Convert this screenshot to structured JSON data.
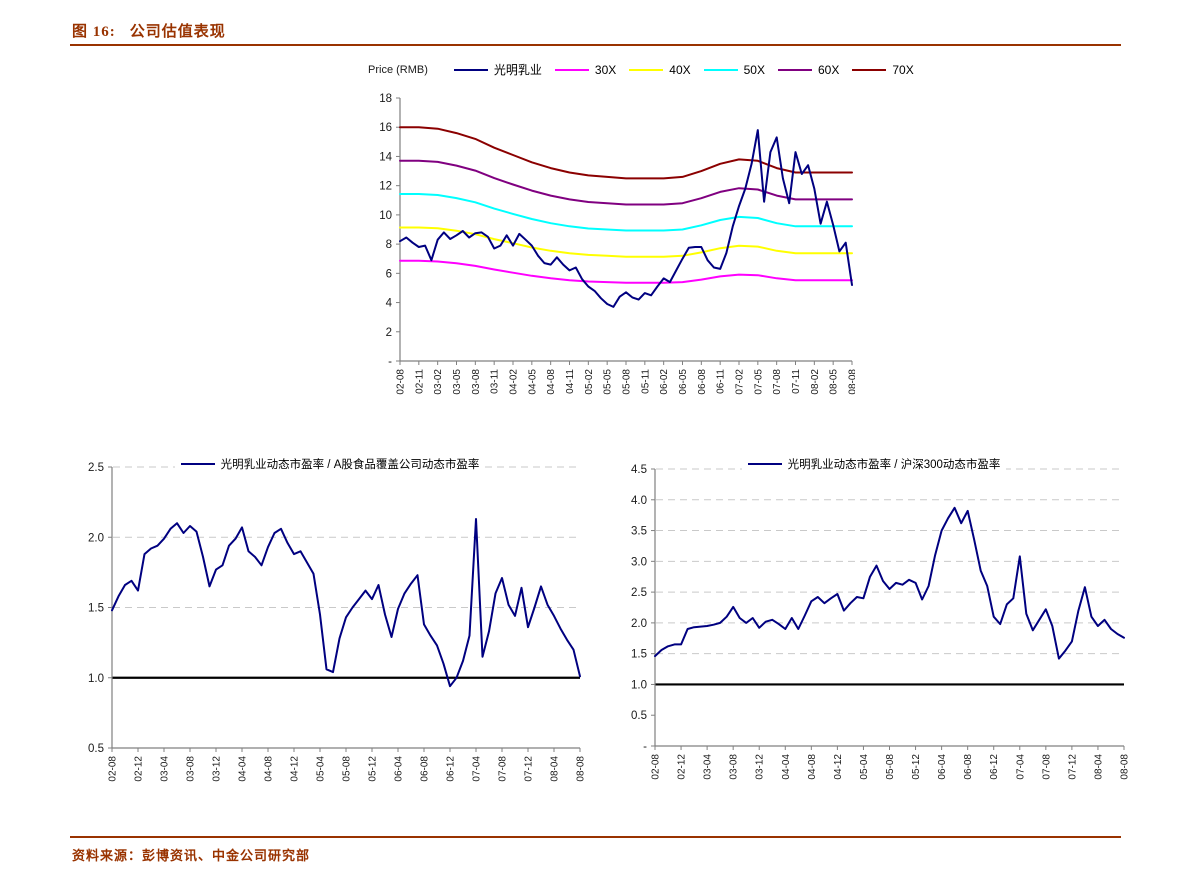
{
  "page": {
    "figure_label": "图 16:",
    "figure_title": "公司估值表现",
    "source_label": "资料来源：",
    "source_text": "彭博资讯、中金公司研究部",
    "accent_color": "#993300"
  },
  "chart_data": [
    {
      "id": "valuation-bands",
      "type": "line",
      "title": "",
      "axis_label": "Price (RMB)",
      "xlabel": "",
      "ylabel": "Price (RMB)",
      "ylim": [
        0,
        18
      ],
      "yticks": [
        0,
        2,
        4,
        6,
        8,
        10,
        12,
        14,
        16,
        18
      ],
      "ytick_labels": [
        "-",
        "2",
        "4",
        "6",
        "8",
        "10",
        "12",
        "14",
        "16",
        "18"
      ],
      "x_tick_labels": [
        "02-08",
        "02-11",
        "03-02",
        "03-05",
        "03-08",
        "03-11",
        "04-02",
        "04-05",
        "04-08",
        "04-11",
        "05-02",
        "05-05",
        "05-08",
        "05-11",
        "06-02",
        "06-05",
        "06-08",
        "06-11",
        "07-02",
        "07-05",
        "07-08",
        "07-11",
        "08-02",
        "08-05",
        "08-08"
      ],
      "grid": false,
      "legend_position": "top",
      "series": [
        {
          "sid": "pe-30x",
          "name": "30X",
          "color": "#FF00FF",
          "values": [
            6.86,
            6.86,
            6.81,
            6.69,
            6.51,
            6.26,
            6.04,
            5.83,
            5.66,
            5.53,
            5.44,
            5.4,
            5.36,
            5.36,
            5.36,
            5.4,
            5.57,
            5.79,
            5.91,
            5.87,
            5.66,
            5.53,
            5.53,
            5.53,
            5.53
          ]
        },
        {
          "sid": "pe-40x",
          "name": "40X",
          "color": "#FFFF00",
          "values": [
            9.14,
            9.14,
            9.08,
            8.92,
            8.68,
            8.34,
            8.06,
            7.77,
            7.54,
            7.37,
            7.26,
            7.2,
            7.14,
            7.14,
            7.14,
            7.2,
            7.43,
            7.72,
            7.89,
            7.83,
            7.54,
            7.37,
            7.37,
            7.37,
            7.37
          ]
        },
        {
          "sid": "pe-50x",
          "name": "50X",
          "color": "#00FFFF",
          "values": [
            11.43,
            11.43,
            11.36,
            11.15,
            10.86,
            10.43,
            10.07,
            9.72,
            9.43,
            9.22,
            9.07,
            9.0,
            8.93,
            8.93,
            8.93,
            9.0,
            9.29,
            9.65,
            9.86,
            9.79,
            9.43,
            9.22,
            9.22,
            9.22,
            9.22
          ]
        },
        {
          "sid": "pe-60x",
          "name": "60X",
          "color": "#800080",
          "values": [
            13.71,
            13.71,
            13.63,
            13.37,
            13.03,
            12.52,
            12.08,
            11.66,
            11.32,
            11.06,
            10.88,
            10.8,
            10.71,
            10.71,
            10.71,
            10.8,
            11.14,
            11.57,
            11.83,
            11.74,
            11.32,
            11.06,
            11.06,
            11.06,
            11.06
          ]
        },
        {
          "sid": "pe-70x",
          "name": "70X",
          "color": "#8B0000",
          "values": [
            16.0,
            16.0,
            15.9,
            15.6,
            15.2,
            14.6,
            14.1,
            13.6,
            13.2,
            12.9,
            12.7,
            12.6,
            12.5,
            12.5,
            12.5,
            12.6,
            13.0,
            13.5,
            13.8,
            13.7,
            13.2,
            12.9,
            12.9,
            12.9,
            12.9
          ]
        },
        {
          "sid": "guangming-price",
          "name": "光明乳业",
          "color": "#000080",
          "legend_first": true,
          "values": [
            8.2,
            8.45,
            8.1,
            7.8,
            7.9,
            6.9,
            8.3,
            8.8,
            8.35,
            8.6,
            8.9,
            8.45,
            8.75,
            8.8,
            8.5,
            7.7,
            7.9,
            8.6,
            7.9,
            8.7,
            8.3,
            7.9,
            7.2,
            6.7,
            6.6,
            7.1,
            6.6,
            6.2,
            6.4,
            5.6,
            5.1,
            4.8,
            4.3,
            3.9,
            3.7,
            4.4,
            4.7,
            4.35,
            4.2,
            4.65,
            4.5,
            5.1,
            5.65,
            5.4,
            6.2,
            7.0,
            7.75,
            7.8,
            7.8,
            6.9,
            6.4,
            6.3,
            7.4,
            9.2,
            10.6,
            11.8,
            13.5,
            15.8,
            10.9,
            14.3,
            15.3,
            12.5,
            10.8,
            14.3,
            12.8,
            13.4,
            11.8,
            9.4,
            10.9,
            9.3,
            7.5,
            8.1,
            5.2
          ]
        }
      ]
    },
    {
      "id": "pe-vs-food",
      "type": "line",
      "title": "",
      "xlabel": "",
      "ylabel": "",
      "ylim": [
        0.5,
        2.5
      ],
      "yticks": [
        0.5,
        1.0,
        1.5,
        2.0,
        2.5
      ],
      "ytick_labels": [
        "0.5",
        "1.0",
        "1.5",
        "2.0",
        "2.5"
      ],
      "x_tick_labels": [
        "02-08",
        "02-12",
        "03-04",
        "03-08",
        "03-12",
        "04-04",
        "04-08",
        "04-12",
        "05-04",
        "05-08",
        "05-12",
        "06-04",
        "06-08",
        "06-12",
        "07-04",
        "07-08",
        "07-12",
        "08-04",
        "08-08"
      ],
      "gridlines": [
        1.5,
        2.0,
        2.5
      ],
      "reference_line": 1.0,
      "grid": true,
      "legend_position": "top-center",
      "series": [
        {
          "sid": "pe-ratio-vs-food",
          "name": "光明乳业动态市盈率 / A股食品覆盖公司动态市盈率",
          "color": "#000080",
          "values": [
            1.48,
            1.58,
            1.66,
            1.69,
            1.62,
            1.88,
            1.92,
            1.94,
            1.99,
            2.06,
            2.1,
            2.03,
            2.08,
            2.04,
            1.86,
            1.65,
            1.77,
            1.8,
            1.94,
            1.99,
            2.07,
            1.9,
            1.86,
            1.8,
            1.93,
            2.03,
            2.06,
            1.96,
            1.88,
            1.9,
            1.82,
            1.74,
            1.45,
            1.06,
            1.04,
            1.28,
            1.43,
            1.5,
            1.56,
            1.62,
            1.56,
            1.66,
            1.45,
            1.29,
            1.49,
            1.6,
            1.67,
            1.73,
            1.38,
            1.3,
            1.23,
            1.1,
            0.94,
            1.0,
            1.12,
            1.3,
            2.13,
            1.15,
            1.33,
            1.6,
            1.71,
            1.52,
            1.44,
            1.64,
            1.36,
            1.5,
            1.65,
            1.52,
            1.44,
            1.35,
            1.27,
            1.2,
            1.01
          ]
        }
      ]
    },
    {
      "id": "pe-vs-csi300",
      "type": "line",
      "title": "",
      "xlabel": "",
      "ylabel": "",
      "ylim": [
        0,
        4.5
      ],
      "yticks": [
        0,
        0.5,
        1.0,
        1.5,
        2.0,
        2.5,
        3.0,
        3.5,
        4.0,
        4.5
      ],
      "ytick_labels": [
        "-",
        "0.5",
        "1.0",
        "1.5",
        "2.0",
        "2.5",
        "3.0",
        "3.5",
        "4.0",
        "4.5"
      ],
      "x_tick_labels": [
        "02-08",
        "02-12",
        "03-04",
        "03-08",
        "03-12",
        "04-04",
        "04-08",
        "04-12",
        "05-04",
        "05-08",
        "05-12",
        "06-04",
        "06-08",
        "06-12",
        "07-04",
        "07-08",
        "07-12",
        "08-04",
        "08-08"
      ],
      "gridlines": [
        1.5,
        2.0,
        2.5,
        3.0,
        3.5,
        4.0,
        4.5
      ],
      "reference_line": 1.0,
      "grid": true,
      "legend_position": "top-center",
      "series": [
        {
          "sid": "pe-ratio-vs-csi300",
          "name": "光明乳业动态市盈率 / 沪深300动态市盈率",
          "color": "#000080",
          "values": [
            1.46,
            1.56,
            1.62,
            1.65,
            1.65,
            1.9,
            1.93,
            1.94,
            1.95,
            1.97,
            2.0,
            2.1,
            2.26,
            2.08,
            2.0,
            2.08,
            1.92,
            2.02,
            2.05,
            1.98,
            1.9,
            2.08,
            1.9,
            2.12,
            2.35,
            2.42,
            2.32,
            2.4,
            2.47,
            2.2,
            2.32,
            2.42,
            2.4,
            2.75,
            2.93,
            2.68,
            2.55,
            2.65,
            2.62,
            2.7,
            2.65,
            2.38,
            2.6,
            3.1,
            3.5,
            3.7,
            3.87,
            3.62,
            3.82,
            3.35,
            2.85,
            2.6,
            2.1,
            1.98,
            2.3,
            2.4,
            3.08,
            2.15,
            1.88,
            2.05,
            2.22,
            1.95,
            1.42,
            1.55,
            1.7,
            2.2,
            2.58,
            2.1,
            1.95,
            2.05,
            1.9,
            1.82,
            1.76
          ]
        }
      ]
    }
  ]
}
